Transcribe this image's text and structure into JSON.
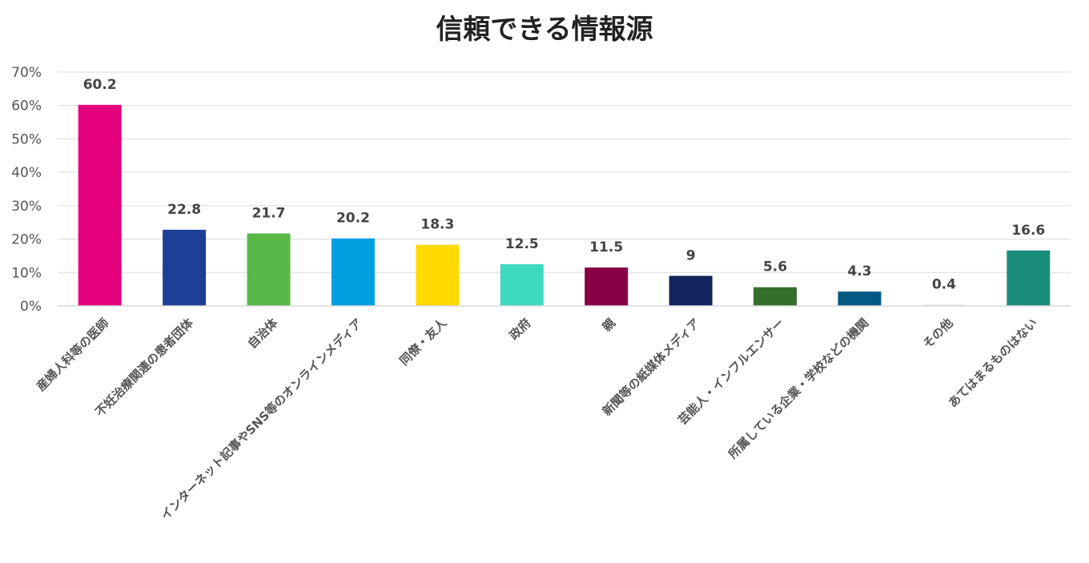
{
  "chart_data": {
    "type": "bar",
    "title": "信頼できる情報源",
    "xlabel": "",
    "ylabel": "",
    "ylim": [
      0,
      70
    ],
    "y_unit": "%",
    "y_ticks": [
      "0%",
      "10%",
      "20%",
      "30%",
      "40%",
      "50%",
      "60%",
      "70%"
    ],
    "y_tick_values": [
      0,
      10,
      20,
      30,
      40,
      50,
      60,
      70
    ],
    "grid": true,
    "legend": "none",
    "categories": [
      "産婦人科等の医師",
      "不妊治療関連の患者団体",
      "自治体",
      "インターネット記事やSNS等のオンラインメディア",
      "同僚・友人",
      "政府",
      "親",
      "新聞等の紙媒体メディア",
      "芸能人・インフルエンサー",
      "所属している企業・学校などの機関",
      "その他",
      "あてはまるものはない"
    ],
    "values": [
      60.2,
      22.8,
      21.7,
      20.2,
      18.3,
      12.5,
      11.5,
      9,
      5.6,
      4.3,
      0.4,
      16.6
    ],
    "data_labels": [
      "60.2",
      "22.8",
      "21.7",
      "20.2",
      "18.3",
      "12.5",
      "11.5",
      "9",
      "5.6",
      "4.3",
      "0.4",
      "16.6"
    ],
    "colors": [
      "#E3007A",
      "#1E3F96",
      "#58B947",
      "#009FDF",
      "#FFDA00",
      "#3DD9C1",
      "#870045",
      "#13235B",
      "#336E2B",
      "#005A84",
      "#E0E0E0",
      "#1A8C7A"
    ]
  }
}
